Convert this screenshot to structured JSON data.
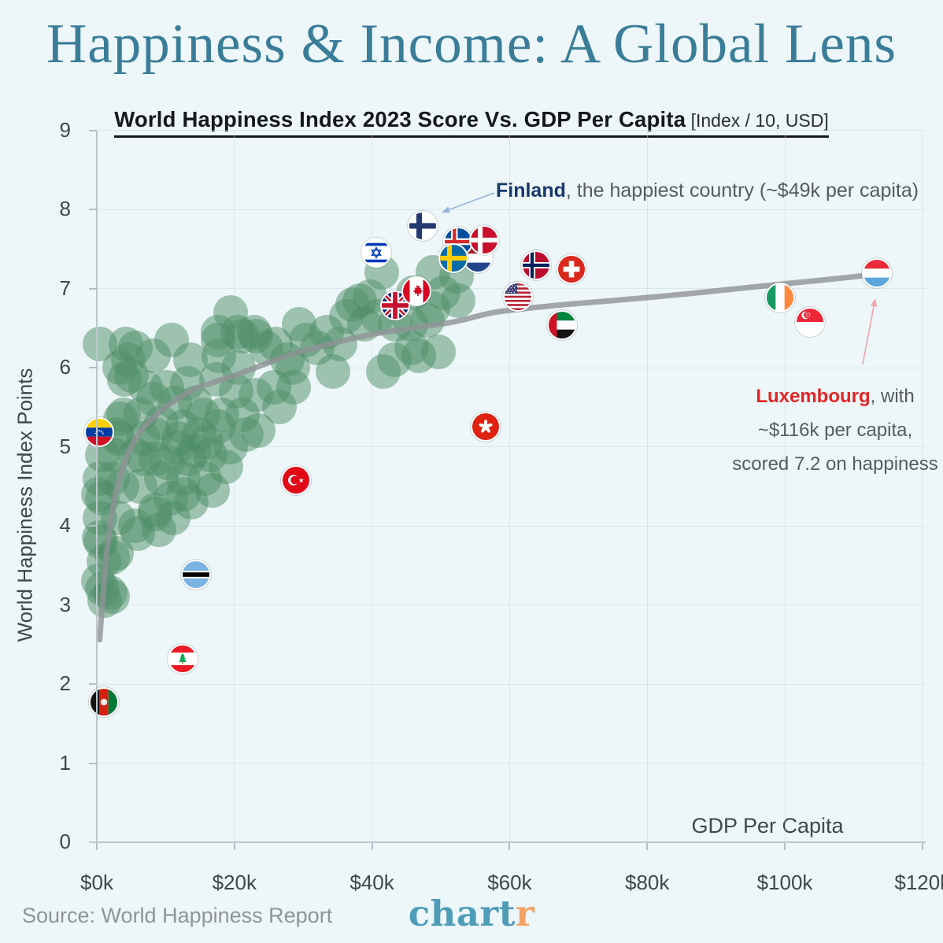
{
  "header": {
    "title": "Happiness & Income: A Global Lens"
  },
  "footer": {
    "source": "Source: World Happiness Report",
    "logo_main": "chart",
    "logo_accent": "r"
  },
  "colors": {
    "background": "#edf6f8",
    "title": "#3a7d98",
    "dot": "#4e8e66",
    "trend": "#8e9296",
    "axis": "#bcc7cd",
    "grid": "#c7dde6",
    "tick_text": "#3f464c",
    "annotation_text": "#555b61",
    "finland_accent": "#17386b",
    "finland_arrow": "#93b5d8",
    "luxembourg_accent": "#e42527",
    "luxembourg_arrow": "#f0a3aa",
    "logo_teal": "#4f9cb8",
    "logo_orange": "#f4a263"
  },
  "chart_data": {
    "type": "scatter",
    "title": "World Happiness Index 2023 Score Vs. GDP Per Capita",
    "title_suffix": " [Index / 10, USD]",
    "xlabel": "GDP Per Capita",
    "ylabel": "World Happiness Index Points",
    "x_unit": "USD thousands",
    "x_range": [
      0,
      120.5
    ],
    "y_range": [
      0,
      9
    ],
    "grid": true,
    "legend": "none",
    "x_ticks": [
      {
        "label": "$0k",
        "value": 0
      },
      {
        "label": "$20k",
        "value": 20
      },
      {
        "label": "$40k",
        "value": 40
      },
      {
        "label": "$60k",
        "value": 60
      },
      {
        "label": "$80k",
        "value": 80
      },
      {
        "label": "$100k",
        "value": 100
      },
      {
        "label": "$120k",
        "value": 120
      }
    ],
    "y_ticks": [
      0,
      1,
      2,
      3,
      4,
      5,
      6,
      7,
      8,
      9
    ],
    "annotations": {
      "finland": {
        "bold": "Finland",
        "text": ", the happiest country (~$49k per capita)"
      },
      "luxembourg": {
        "bold": "Luxembourg",
        "line1_rest": ", with",
        "line2": "~$116k per capita,",
        "line3": "scored 7.2 on happiness"
      }
    },
    "flagged_points": [
      {
        "country": "Netherlands",
        "code": "nl",
        "gdp_k": 55.4,
        "happiness": 7.38
      },
      {
        "country": "Iceland",
        "code": "is",
        "gdp_k": 52.5,
        "happiness": 7.59
      },
      {
        "country": "Denmark",
        "code": "dk",
        "gdp_k": 56.3,
        "happiness": 7.61
      },
      {
        "country": "Sweden",
        "code": "se",
        "gdp_k": 51.8,
        "happiness": 7.38
      },
      {
        "country": "Israel",
        "code": "il",
        "gdp_k": 40.6,
        "happiness": 7.45
      },
      {
        "country": "Finland",
        "code": "fi",
        "gdp_k": 47.4,
        "happiness": 7.79
      },
      {
        "country": "Norway",
        "code": "no",
        "gdp_k": 63.8,
        "happiness": 7.29
      },
      {
        "country": "Switzerland",
        "code": "ch",
        "gdp_k": 69.0,
        "happiness": 7.24
      },
      {
        "country": "United Kingdom",
        "code": "gb",
        "gdp_k": 43.4,
        "happiness": 6.79
      },
      {
        "country": "Canada",
        "code": "ca",
        "gdp_k": 46.5,
        "happiness": 6.97
      },
      {
        "country": "United States",
        "code": "us",
        "gdp_k": 61.2,
        "happiness": 6.9
      },
      {
        "country": "United Arab Emirates",
        "code": "ae",
        "gdp_k": 67.6,
        "happiness": 6.54
      },
      {
        "country": "Ireland",
        "code": "ie",
        "gdp_k": 99.3,
        "happiness": 6.89
      },
      {
        "country": "Singapore",
        "code": "sg",
        "gdp_k": 103.7,
        "happiness": 6.58
      },
      {
        "country": "Luxembourg",
        "code": "lu",
        "gdp_k": 113.4,
        "happiness": 7.19
      },
      {
        "country": "Venezuela",
        "code": "ve",
        "gdp_k": 0.3,
        "happiness": 5.18
      },
      {
        "country": "Turkiye",
        "code": "tr",
        "gdp_k": 28.9,
        "happiness": 4.58
      },
      {
        "country": "Botswana",
        "code": "bw",
        "gdp_k": 14.4,
        "happiness": 3.38
      },
      {
        "country": "Lebanon",
        "code": "lb",
        "gdp_k": 12.5,
        "happiness": 2.32
      },
      {
        "country": "Afghanistan",
        "code": "af",
        "gdp_k": 1.0,
        "happiness": 1.77
      },
      {
        "country": "Hong Kong",
        "code": "hk",
        "gdp_k": 56.5,
        "happiness": 5.25
      }
    ],
    "trend": [
      [
        0.42,
        2.56
      ],
      [
        0.8,
        3.0
      ],
      [
        1.5,
        3.7
      ],
      [
        2.5,
        4.3
      ],
      [
        4,
        4.8
      ],
      [
        6,
        5.15
      ],
      [
        8,
        5.35
      ],
      [
        10,
        5.5
      ],
      [
        14,
        5.72
      ],
      [
        20,
        5.9
      ],
      [
        24,
        6.03
      ],
      [
        28,
        6.16
      ],
      [
        34,
        6.3
      ],
      [
        40,
        6.42
      ],
      [
        46,
        6.5
      ],
      [
        52,
        6.58
      ],
      [
        58,
        6.7
      ],
      [
        66,
        6.78
      ],
      [
        74,
        6.84
      ],
      [
        82,
        6.9
      ],
      [
        90,
        6.97
      ],
      [
        100,
        7.06
      ],
      [
        107,
        7.12
      ],
      [
        113.5,
        7.18
      ]
    ],
    "green_points": [
      [
        0.5,
        6.3
      ],
      [
        4.2,
        6.3
      ],
      [
        3.3,
        6.0
      ],
      [
        5.0,
        5.9
      ],
      [
        3.9,
        5.4
      ],
      [
        2.9,
        5.15
      ],
      [
        0.8,
        4.9
      ],
      [
        2.3,
        4.6
      ],
      [
        0.2,
        4.4
      ],
      [
        3.1,
        4.1
      ],
      [
        0.3,
        3.85
      ],
      [
        2.3,
        3.6
      ],
      [
        0.2,
        3.3
      ],
      [
        1.9,
        3.15
      ],
      [
        1.2,
        3.05
      ],
      [
        2.9,
        3.65
      ],
      [
        1.0,
        3.55
      ],
      [
        3.2,
        5.1
      ],
      [
        6.8,
        5.1
      ],
      [
        2.5,
        4.9
      ],
      [
        5.6,
        4.9
      ],
      [
        8.6,
        4.85
      ],
      [
        0.5,
        4.6
      ],
      [
        3.7,
        4.5
      ],
      [
        6.3,
        4.5
      ],
      [
        9.4,
        4.6
      ],
      [
        0.8,
        4.35
      ],
      [
        12.6,
        4.4
      ],
      [
        5.6,
        4.0
      ],
      [
        9.0,
        3.95
      ],
      [
        0.6,
        3.8
      ],
      [
        8.5,
        4.15
      ],
      [
        11.1,
        4.1
      ],
      [
        0.5,
        4.1
      ],
      [
        5.9,
        3.9
      ],
      [
        0.8,
        3.2
      ],
      [
        2.3,
        3.1
      ],
      [
        11.7,
        5.0
      ],
      [
        14.2,
        4.95
      ],
      [
        15.9,
        5.05
      ],
      [
        5.6,
        6.25
      ],
      [
        10.9,
        6.35
      ],
      [
        4.6,
        6.1
      ],
      [
        8.2,
        6.15
      ],
      [
        13.6,
        6.1
      ],
      [
        17.6,
        6.35
      ],
      [
        20.5,
        6.45
      ],
      [
        23.1,
        6.4
      ],
      [
        17.7,
        6.15
      ],
      [
        20.6,
        6.0
      ],
      [
        4.0,
        5.85
      ],
      [
        7.1,
        5.75
      ],
      [
        10.2,
        5.75
      ],
      [
        13.2,
        5.8
      ],
      [
        8.2,
        5.6
      ],
      [
        11.3,
        5.55
      ],
      [
        14.3,
        5.55
      ],
      [
        17.4,
        5.85
      ],
      [
        20.3,
        5.7
      ],
      [
        23.1,
        5.65
      ],
      [
        25.7,
        5.75
      ],
      [
        3.4,
        5.35
      ],
      [
        6.3,
        5.4
      ],
      [
        9.4,
        5.3
      ],
      [
        12.5,
        5.25
      ],
      [
        15.4,
        5.4
      ],
      [
        18.2,
        5.4
      ],
      [
        21.2,
        5.4
      ],
      [
        23.5,
        5.2
      ],
      [
        26.5,
        5.5
      ],
      [
        27.7,
        6.1
      ],
      [
        28.6,
        5.75
      ],
      [
        8.5,
        5.15
      ],
      [
        11.9,
        5.1
      ],
      [
        14.9,
        5.15
      ],
      [
        17.6,
        5.25
      ],
      [
        6.9,
        4.85
      ],
      [
        10.3,
        4.8
      ],
      [
        13.4,
        4.85
      ],
      [
        16.5,
        4.9
      ],
      [
        19.5,
        5.0
      ],
      [
        21.7,
        5.15
      ],
      [
        12.6,
        4.6
      ],
      [
        15.7,
        4.6
      ],
      [
        18.8,
        4.75
      ],
      [
        10.8,
        4.35
      ],
      [
        13.7,
        4.3
      ],
      [
        16.8,
        4.45
      ],
      [
        8.5,
        4.2
      ],
      [
        17.6,
        6.45
      ],
      [
        19.5,
        6.7
      ],
      [
        21.2,
        6.4
      ],
      [
        22.9,
        6.45
      ],
      [
        24.6,
        6.25
      ],
      [
        29.4,
        6.55
      ],
      [
        32.0,
        6.25
      ],
      [
        34.3,
        5.95
      ],
      [
        28.5,
        6.0
      ],
      [
        38.2,
        6.85
      ],
      [
        41.4,
        7.2
      ],
      [
        48.9,
        7.2
      ],
      [
        52.3,
        7.15
      ],
      [
        45.8,
        6.25
      ],
      [
        41.6,
        5.95
      ],
      [
        39.7,
        6.9
      ],
      [
        37.2,
        6.8
      ],
      [
        36.3,
        6.65
      ],
      [
        38.9,
        6.55
      ],
      [
        40.8,
        6.65
      ],
      [
        43.4,
        6.55
      ],
      [
        46.0,
        6.95
      ],
      [
        50.3,
        6.95
      ],
      [
        52.5,
        6.85
      ],
      [
        48.9,
        6.75
      ],
      [
        48.1,
        6.6
      ],
      [
        45.7,
        6.55
      ],
      [
        43.3,
        6.1
      ],
      [
        46.8,
        6.15
      ],
      [
        49.7,
        6.2
      ],
      [
        30.4,
        6.35
      ],
      [
        33.4,
        6.45
      ],
      [
        35.4,
        6.3
      ],
      [
        26.0,
        6.3
      ]
    ]
  }
}
